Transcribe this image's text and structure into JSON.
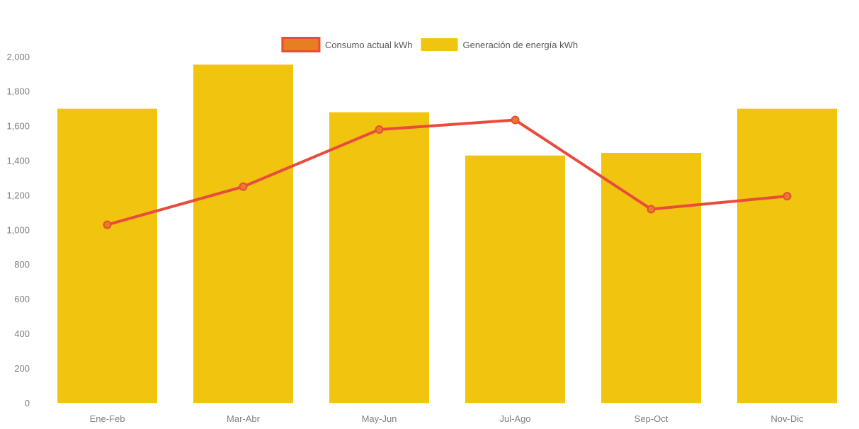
{
  "chart_data": {
    "type": "combo",
    "title": "",
    "categories": [
      "Ene-Feb",
      "Mar-Abr",
      "May-Jun",
      "Jul-Ago",
      "Sep-Oct",
      "Nov-Dic"
    ],
    "series": [
      {
        "name": "Consumo actual kWh",
        "type": "line",
        "values": [
          1030,
          1250,
          1580,
          1635,
          1120,
          1195
        ],
        "line_color": "#e74c3c",
        "marker_fill": "#e67e22",
        "marker_stroke": "#e74c3c"
      },
      {
        "name": "Generación de energía kWh",
        "type": "bar",
        "values": [
          1700,
          1955,
          1680,
          1430,
          1445,
          1700
        ],
        "bar_color": "#f1c40f"
      }
    ],
    "ylim": [
      0,
      2000
    ],
    "ytick_step": 200,
    "ytick_labels": [
      "0",
      "200",
      "400",
      "600",
      "800",
      "1,000",
      "1,200",
      "1,400",
      "1,600",
      "1,800",
      "2,000"
    ],
    "grid": false,
    "legend_position": "top-center",
    "axis_tick_color": "#7f7f7f",
    "legend_text_color": "#595959"
  }
}
